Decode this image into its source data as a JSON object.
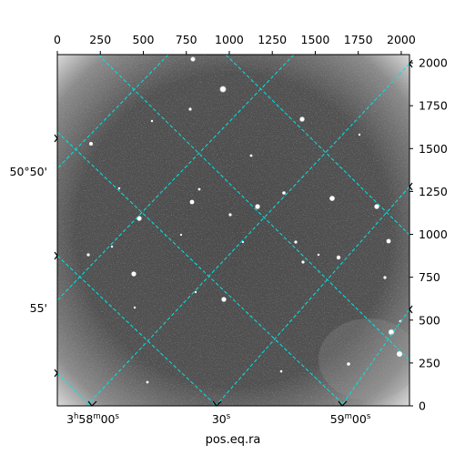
{
  "figure": {
    "xlabel": "pos.eq.ra",
    "ylabel": "",
    "top_ticks": [
      "0",
      "250",
      "500",
      "750",
      "1000",
      "1250",
      "1500",
      "1750",
      "2000"
    ],
    "top_tick_values": [
      0,
      250,
      500,
      750,
      1000,
      1250,
      1500,
      1750,
      2000
    ],
    "right_ticks": [
      "0",
      "250",
      "500",
      "750",
      "1000",
      "1250",
      "1500",
      "1750",
      "2000"
    ],
    "right_tick_values": [
      0,
      250,
      500,
      750,
      1000,
      1250,
      1500,
      1750,
      2000
    ],
    "pixel_range": [
      0,
      2048
    ],
    "ra_labels": {
      "l1": {
        "h": "3",
        "h_unit": "h",
        "m": "58",
        "m_unit": "m",
        "s": "00",
        "s_unit": "s"
      },
      "l2": {
        "s": "30",
        "s_unit": "s"
      },
      "l3": {
        "m": "59",
        "m_unit": "m",
        "s": "00",
        "s_unit": "s"
      }
    },
    "dec_labels": [
      "50°50'",
      "55'"
    ],
    "grid_color": "#00e5e5",
    "image_colormap": "grayscale",
    "frame_color": "#000000"
  }
}
